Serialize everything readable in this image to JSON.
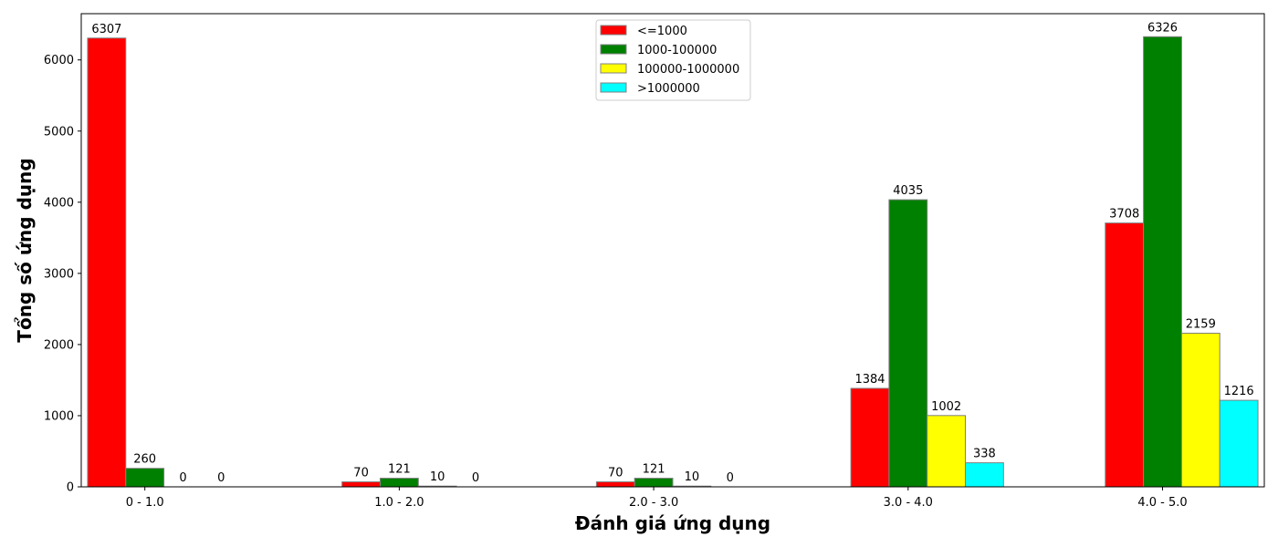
{
  "chart_data": {
    "type": "bar",
    "xlabel": "Đánh giá ứng dụng",
    "ylabel": "Tổng số ứng dụng",
    "categories": [
      "0 - 1.0",
      "1.0 - 2.0",
      "2.0 - 3.0",
      "3.0 - 4.0",
      "4.0 - 5.0"
    ],
    "ylim": [
      0,
      6650
    ],
    "yticks": [
      0,
      1000,
      2000,
      3000,
      4000,
      5000,
      6000
    ],
    "legend_position": "top-center",
    "series": [
      {
        "name": "<=1000",
        "color": "#ff0000",
        "values": [
          6307,
          70,
          70,
          1384,
          3708
        ]
      },
      {
        "name": "1000-100000",
        "color": "#008000",
        "values": [
          260,
          121,
          121,
          4035,
          6326
        ]
      },
      {
        "name": "100000-1000000",
        "color": "#ffff00",
        "values": [
          0,
          10,
          10,
          1002,
          2159
        ]
      },
      {
        "name": ">1000000",
        "color": "#00ffff",
        "values": [
          0,
          0,
          0,
          338,
          1216
        ]
      }
    ]
  }
}
